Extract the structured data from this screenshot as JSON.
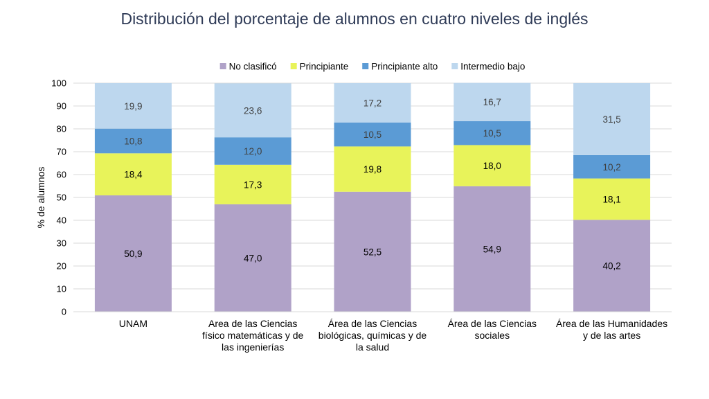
{
  "chart_data": {
    "type": "bar",
    "stacked": true,
    "title": "Distribución del porcentaje de alumnos en cuatro niveles de inglés",
    "xlabel": "",
    "ylabel": "% de alumnos",
    "ylim": [
      0,
      100
    ],
    "yticks": [
      0,
      10,
      20,
      30,
      40,
      50,
      60,
      70,
      80,
      90,
      100
    ],
    "grid": true,
    "legend_position": "top",
    "categories": [
      [
        "UNAM"
      ],
      [
        "Area de las Ciencias",
        "físico matemáticas y de",
        "las ingenierías"
      ],
      [
        "Área de las Ciencias",
        "biológicas, químicas y de",
        "la salud"
      ],
      [
        "Área de las Ciencias",
        "sociales"
      ],
      [
        "Área de las Humanidades",
        "y de las artes"
      ]
    ],
    "series": [
      {
        "name": "No clasificó",
        "color": "#b0a2c8",
        "values": [
          50.9,
          47.0,
          52.5,
          54.9,
          40.2
        ],
        "labels": [
          "50,9",
          "47,0",
          "52,5",
          "54,9",
          "40,2"
        ]
      },
      {
        "name": "Principiante",
        "color": "#e8f35a",
        "values": [
          18.4,
          17.3,
          19.8,
          18.0,
          18.1
        ],
        "labels": [
          "18,4",
          "17,3",
          "19,8",
          "18,0",
          "18,1"
        ]
      },
      {
        "name": "Principiante alto",
        "color": "#5b9bd5",
        "values": [
          10.8,
          12.0,
          10.5,
          10.5,
          10.2
        ],
        "labels": [
          "10,8",
          "12,0",
          "10,5",
          "10,5",
          "10,2"
        ]
      },
      {
        "name": "Intermedio bajo",
        "color": "#bdd7ee",
        "values": [
          19.9,
          23.6,
          17.2,
          16.7,
          31.5
        ],
        "labels": [
          "19,9",
          "23,6",
          "17,2",
          "16,7",
          "31,5"
        ]
      }
    ]
  }
}
